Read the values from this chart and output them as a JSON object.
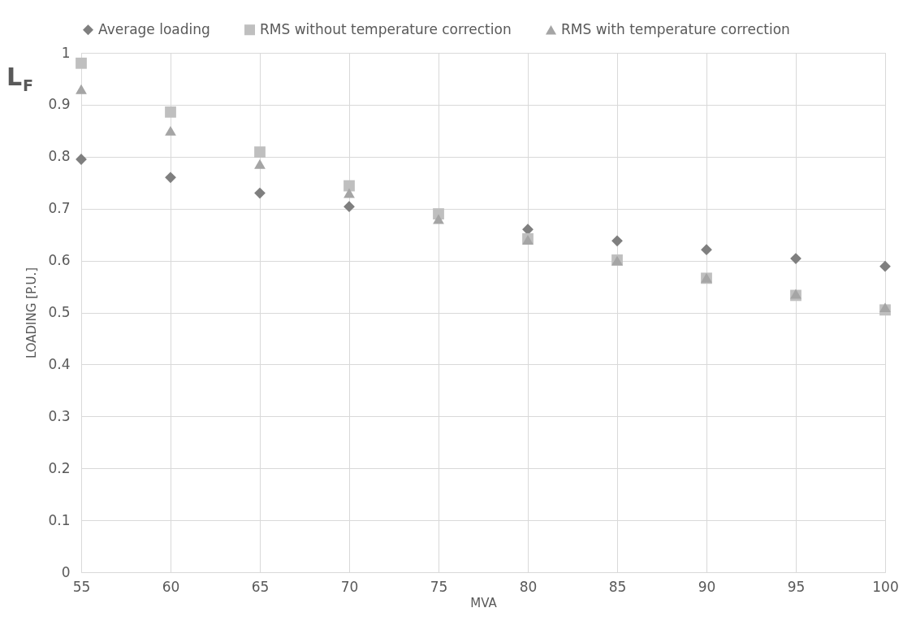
{
  "chart_data": {
    "type": "scatter",
    "xlabel": "MVA",
    "ylabel": "LOADING [P.U.]",
    "annotations": [
      "L$_{F}$"
    ],
    "x": [
      55,
      60,
      65,
      70,
      75,
      80,
      85,
      90,
      95,
      100
    ],
    "series": [
      {
        "name": "Average loading",
        "color": "#7f7f7f",
        "marker": "diamond",
        "values": [
          0.795,
          0.76,
          0.73,
          0.704,
          null,
          0.66,
          0.638,
          0.621,
          0.604,
          0.589
        ]
      },
      {
        "name": "RMS without temperature correction",
        "color": "#bfbfbf",
        "marker": "square",
        "values": [
          0.98,
          0.886,
          0.809,
          0.744,
          0.69,
          0.642,
          0.601,
          0.566,
          0.533,
          0.505
        ]
      },
      {
        "name": "RMS with temperature correction",
        "color": "#a5a5a5",
        "marker": "triangle",
        "values": [
          0.93,
          0.85,
          0.786,
          0.73,
          0.68,
          0.64,
          0.6,
          0.567,
          0.536,
          0.51
        ]
      }
    ],
    "xlim": [
      55,
      100
    ],
    "xticks": [
      55,
      60,
      65,
      70,
      75,
      80,
      85,
      90,
      95,
      100
    ],
    "ylim": [
      0,
      1
    ],
    "yticks": [
      0,
      0.1,
      0.2,
      0.3,
      0.4,
      0.5,
      0.6,
      0.7,
      0.8,
      0.9,
      1
    ],
    "grid": true,
    "legend": "top"
  }
}
